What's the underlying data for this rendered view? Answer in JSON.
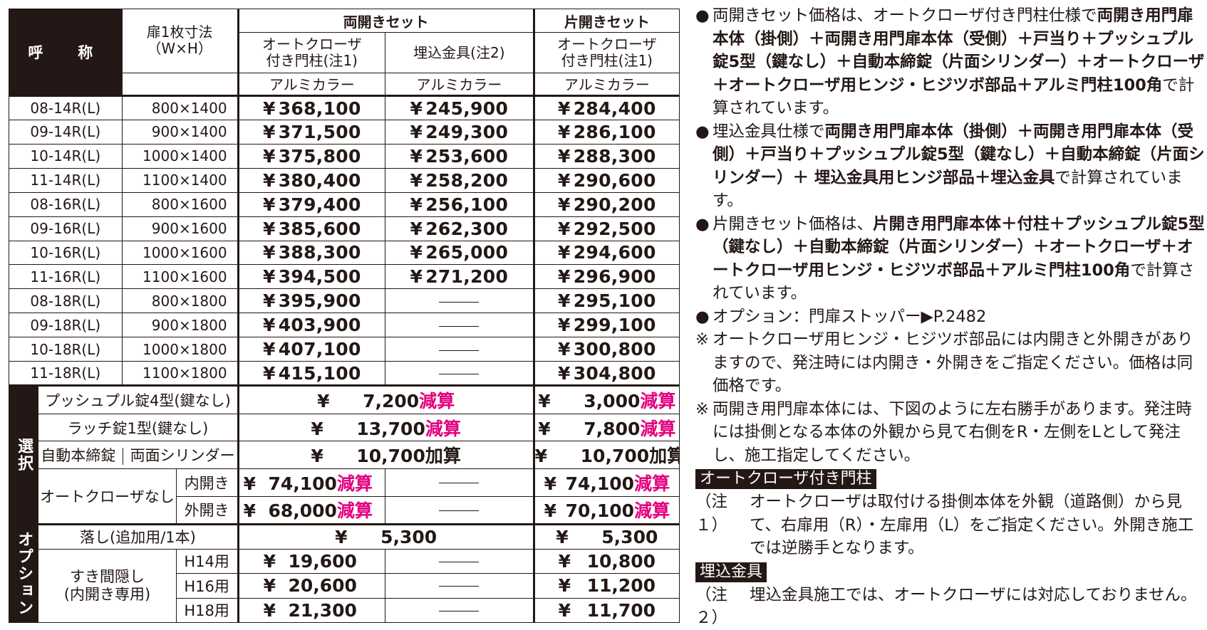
{
  "table": {
    "header": {
      "name": "呼　称",
      "size_line1": "扉1枚寸法",
      "size_line2": "（W×H）",
      "double_set": "両開きセット",
      "single_set": "片開きセット",
      "autocloser_line1": "オートクローザ",
      "autocloser_line2": "付き門柱(注1)",
      "embedded": "埋込金具(注2)",
      "color": "アルミカラー"
    },
    "rows": [
      {
        "code": "08-14R(L)",
        "size": "800×1400",
        "p1": "368,100",
        "p2": "245,900",
        "p3": "284,400"
      },
      {
        "code": "09-14R(L)",
        "size": "900×1400",
        "p1": "371,500",
        "p2": "249,300",
        "p3": "286,100"
      },
      {
        "code": "10-14R(L)",
        "size": "1000×1400",
        "p1": "375,800",
        "p2": "253,600",
        "p3": "288,300"
      },
      {
        "code": "11-14R(L)",
        "size": "1100×1400",
        "p1": "380,400",
        "p2": "258,200",
        "p3": "290,600"
      },
      {
        "code": "08-16R(L)",
        "size": "800×1600",
        "p1": "379,400",
        "p2": "256,100",
        "p3": "290,200"
      },
      {
        "code": "09-16R(L)",
        "size": "900×1600",
        "p1": "385,600",
        "p2": "262,300",
        "p3": "292,500"
      },
      {
        "code": "10-16R(L)",
        "size": "1000×1600",
        "p1": "388,300",
        "p2": "265,000",
        "p3": "294,600"
      },
      {
        "code": "11-16R(L)",
        "size": "1100×1600",
        "p1": "394,500",
        "p2": "271,200",
        "p3": "296,900"
      },
      {
        "code": "08-18R(L)",
        "size": "800×1800",
        "p1": "395,900",
        "p2": null,
        "p3": "295,100"
      },
      {
        "code": "09-18R(L)",
        "size": "900×1800",
        "p1": "403,900",
        "p2": null,
        "p3": "299,100"
      },
      {
        "code": "10-18R(L)",
        "size": "1000×1800",
        "p1": "407,100",
        "p2": null,
        "p3": "300,800"
      },
      {
        "code": "11-18R(L)",
        "size": "1100×1800",
        "p1": "415,100",
        "p2": null,
        "p3": "304,800"
      }
    ],
    "yen": "¥",
    "selection": {
      "side_label": "選択",
      "push_pull": {
        "label": "プッシュプル錠4型(鍵なし)",
        "double": "7,200",
        "double_tag": "減算",
        "single": "3,000",
        "single_tag": "減算"
      },
      "latch": {
        "label": "ラッチ錠1型(鍵なし)",
        "double": "13,700",
        "double_tag": "減算",
        "single": "7,800",
        "single_tag": "減算"
      },
      "deadbolt": {
        "label1": "自動本締錠",
        "label2": "両面シリンダー",
        "double": "10,700",
        "double_tag": "加算",
        "single": "10,700",
        "single_tag": "加算"
      },
      "no_closer": {
        "label": "オートクローザなし",
        "inward": {
          "label": "内開き",
          "double": "74,100",
          "double_tag": "減算",
          "single": "74,100",
          "single_tag": "減算"
        },
        "outward": {
          "label": "外開き",
          "double": "68,000",
          "double_tag": "減算",
          "single": "70,100",
          "single_tag": "減算"
        }
      }
    },
    "option": {
      "side_label": "オプション",
      "drop_rod": {
        "label": "落し(追加用/1本)",
        "double": "5,300",
        "single": "5,300"
      },
      "gap_cover": {
        "label1": "すき間隠し",
        "label2": "(内開き専用)",
        "h14": {
          "label": "H14用",
          "double": "19,600",
          "single": "10,800"
        },
        "h16": {
          "label": "H16用",
          "double": "20,600",
          "single": "11,200"
        },
        "h18": {
          "label": "H18用",
          "double": "21,300",
          "single": "11,700"
        }
      }
    }
  },
  "notes": {
    "n1_mark": "●",
    "n1_a": "両開きセット価格は、オートクローザ付き門柱仕様で",
    "n1_b": "両開き用門扉本体（掛側）＋両開き用門扉本体（受側）＋戸当り＋プッシュプル錠5型（鍵なし）＋自動本締錠（片面シリンダー）＋オートクローザ＋オートクローザ用ヒンジ・ヒジツボ部品＋アルミ門柱100角",
    "n1_c": "で計算されています。",
    "n2_mark": "●",
    "n2_a": "埋込金具仕様で",
    "n2_b": "両開き用門扉本体（掛側）＋両開き用門扉本体（受側）＋戸当り＋プッシュプル錠5型（鍵なし）＋自動本締錠（片面シリンダー）＋ 埋込金具用ヒンジ部品＋埋込金具",
    "n2_c": "で計算されています。",
    "n3_mark": "●",
    "n3_a": "片開きセット価格は、",
    "n3_b": "片開き用門扉本体＋付柱＋プッシュプル錠5型（鍵なし）＋自動本締錠（片面シリンダー）＋オートクローザ＋オートクローザ用ヒンジ・ヒジツボ部品＋アルミ門柱100角",
    "n3_c": "で計算されています。",
    "n4_mark": "●",
    "n4": "オプション：門扉ストッパー▶P.2482",
    "n5_mark": "※",
    "n5": "オートクローザ用ヒンジ・ヒジツボ部品には内開きと外開きがありますので、発注時には内開き・外開きをご指定ください。価格は同価格です。",
    "n6_mark": "※",
    "n6": "両開き用門扉本体には、下図のように左右勝手があります。発注時には掛側となる本体の外観から見て右側をR・左側をLとして発注し、施工指定してください。",
    "box1": "オートクローザ付き門柱",
    "c1_mark": "（注１）",
    "c1": "オートクローザは取付ける掛側本体を外観（道路側）から見て、右扉用（R）・左扉用（L）をご指定ください。外開き施工では逆勝手となります。",
    "box2": "埋込金具",
    "c2_mark": "（注２）",
    "c2": "埋込金具施工では、オートクローザには対応しておりません。"
  }
}
